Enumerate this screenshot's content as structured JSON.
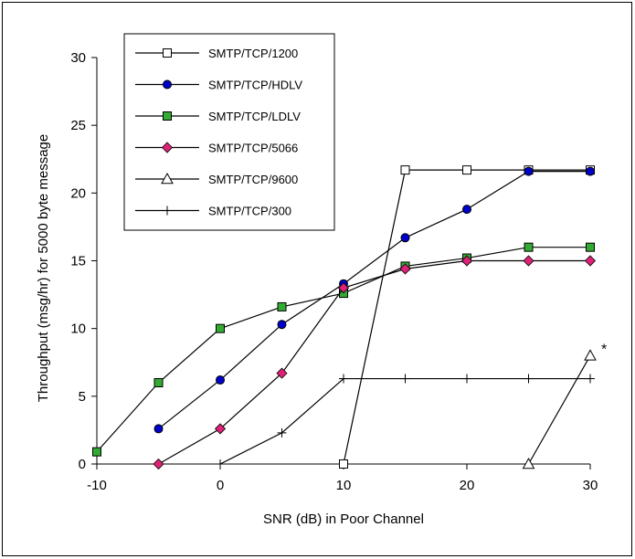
{
  "chart_data": {
    "type": "line",
    "title": "",
    "xlabel": "SNR (dB) in Poor Channel",
    "ylabel": "Throughput (msg/hr) for 5000 byte message",
    "xlim": [
      -10,
      30
    ],
    "ylim": [
      0,
      30
    ],
    "xticks": [
      -10,
      0,
      10,
      20,
      30
    ],
    "yticks": [
      0,
      5,
      10,
      15,
      20,
      25,
      30
    ],
    "grid": false,
    "legend_position": "top-left",
    "series": [
      {
        "name": "SMTP/TCP/1200",
        "marker": "square-open",
        "color": "#000000",
        "x": [
          10,
          15,
          20,
          25,
          30
        ],
        "y": [
          0,
          21.7,
          21.7,
          21.7,
          21.7
        ]
      },
      {
        "name": "SMTP/TCP/HDLV",
        "marker": "circle",
        "color": "#0000cc",
        "x": [
          -5,
          0,
          5,
          10,
          15,
          20,
          25,
          30
        ],
        "y": [
          2.6,
          6.2,
          10.3,
          13.3,
          16.7,
          18.8,
          21.6,
          21.6
        ]
      },
      {
        "name": "SMTP/TCP/LDLV",
        "marker": "square",
        "color": "#33aa33",
        "x": [
          -10,
          -5,
          0,
          5,
          10,
          15,
          20,
          25,
          30
        ],
        "y": [
          0.9,
          6.0,
          10.0,
          11.6,
          12.6,
          14.6,
          15.2,
          16.0,
          16.0
        ]
      },
      {
        "name": "SMTP/TCP/5066",
        "marker": "diamond",
        "color": "#dd2277",
        "x": [
          -5,
          0,
          5,
          10,
          15,
          20,
          25,
          30
        ],
        "y": [
          0,
          2.6,
          6.7,
          13.0,
          14.4,
          15.0,
          15.0,
          15.0
        ]
      },
      {
        "name": "SMTP/TCP/9600",
        "marker": "triangle-open",
        "color": "#000000",
        "x": [
          25,
          30
        ],
        "y": [
          0,
          8.0
        ]
      },
      {
        "name": "SMTP/TCP/300",
        "marker": "plus",
        "color": "#000000",
        "x": [
          0,
          5,
          10,
          15,
          20,
          25,
          30
        ],
        "y": [
          0,
          2.3,
          6.3,
          6.3,
          6.3,
          6.3,
          6.3
        ]
      }
    ],
    "annotations": [
      {
        "text": "*",
        "x": 30,
        "y": 8.0
      }
    ]
  }
}
